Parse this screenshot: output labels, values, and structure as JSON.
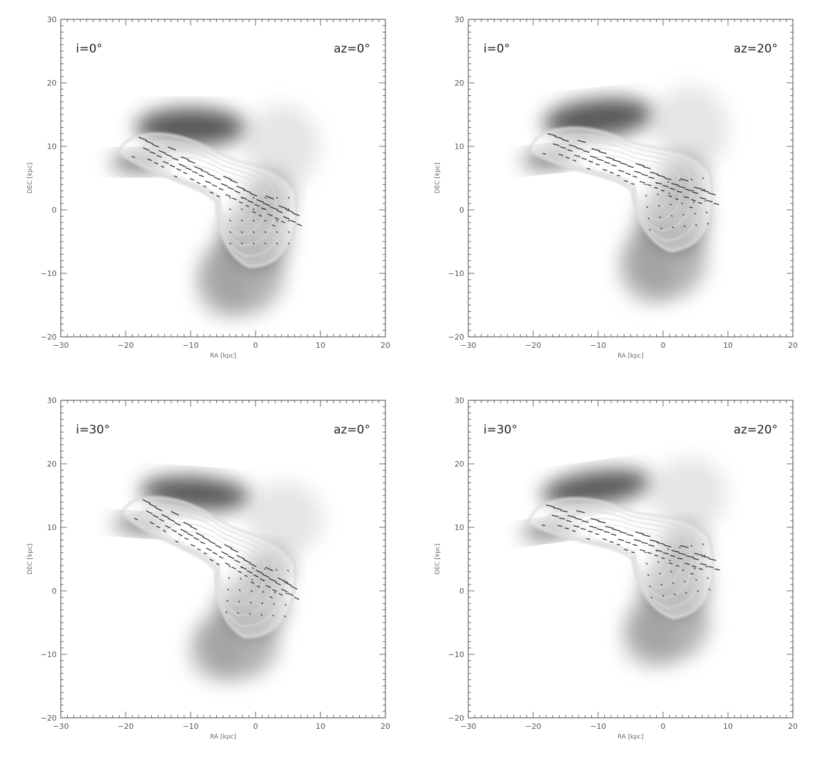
{
  "figure": {
    "panels": [
      {
        "incl_label": "i=0°",
        "az_label": "az=0°"
      },
      {
        "incl_label": "i=0°",
        "az_label": "az=20°"
      },
      {
        "incl_label": "i=30°",
        "az_label": "az=0°"
      },
      {
        "incl_label": "i=30°",
        "az_label": "az=20°"
      }
    ],
    "xlabel": "RA [kpc]",
    "ylabel": "DEC [kpc]",
    "xticks": [
      "−30",
      "−20",
      "−10",
      "0",
      "10",
      "20"
    ],
    "yticks": [
      "−20",
      "−10",
      "0",
      "10",
      "20",
      "30"
    ]
  },
  "colors": {
    "frame": "#444444",
    "contour": "#d9d9d9",
    "gas_dark": "#3a3a3a",
    "gas_light": "#f2f2f2",
    "vector": "#333333"
  }
}
